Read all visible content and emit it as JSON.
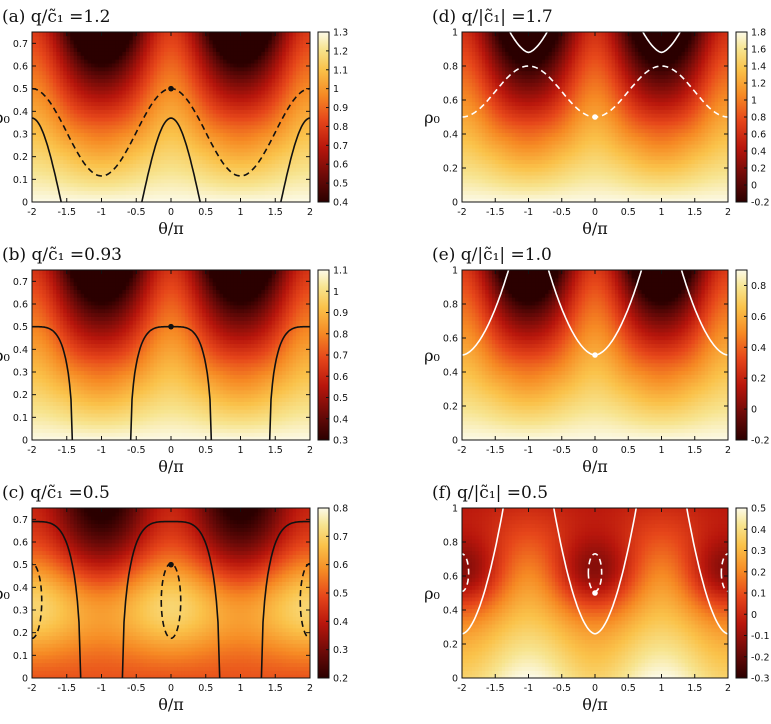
{
  "chart_data": [
    {
      "type": "heatmap",
      "id": "a",
      "title": "(a) q/c̃₁ =1.2",
      "xlabel": "θ/π",
      "ylabel": "ρ₀",
      "xlim": [
        -2,
        2
      ],
      "ylim": [
        0,
        0.75
      ],
      "xticks": [
        -2,
        -1.5,
        -1,
        -0.5,
        0,
        0.5,
        1,
        1.5,
        2
      ],
      "xtick_labels": [
        "-2",
        "-1.5",
        "-1",
        "-0.5",
        "0",
        "0.5",
        "1",
        "1.5",
        "2"
      ],
      "yticks": [
        0,
        0.1,
        0.2,
        0.3,
        0.4,
        0.5,
        0.6,
        0.7
      ],
      "ytick_labels": [
        "0",
        "0.1",
        "0.2",
        "0.3",
        "0.4",
        "0.5",
        "0.6",
        "0.7"
      ],
      "colorbar": {
        "min": 0.4,
        "max": 1.3,
        "ticks": [
          0.4,
          0.5,
          0.6,
          0.7,
          0.8,
          0.9,
          1,
          1.1,
          1.2,
          1.3
        ],
        "tick_labels": [
          "0.4",
          "0.5",
          "0.6",
          "0.7",
          "0.8",
          "0.9",
          "1",
          "1.1",
          "1.2",
          "1.3"
        ]
      },
      "field": {
        "profile": "sin",
        "gamma": 0.9
      },
      "contours": [
        {
          "color": "#111111",
          "dash": false,
          "kind": "cos",
          "base": 0.0,
          "amp": 0.37,
          "half_width": 0.42
        },
        {
          "color": "#111111",
          "dash": true,
          "kind": "cos",
          "base": 0.115,
          "amp": 0.385
        }
      ],
      "marker": {
        "x": 0,
        "y": 0.5,
        "color": "#111111"
      }
    },
    {
      "type": "heatmap",
      "id": "b",
      "title": "(b) q/c̃₁ =0.93",
      "xlabel": "θ/π",
      "ylabel": "ρ₀",
      "xlim": [
        -2,
        2
      ],
      "ylim": [
        0,
        0.75
      ],
      "xticks": [
        -2,
        -1.5,
        -1,
        -0.5,
        0,
        0.5,
        1,
        1.5,
        2
      ],
      "xtick_labels": [
        "-2",
        "-1.5",
        "-1",
        "-0.5",
        "0",
        "0.5",
        "1",
        "1.5",
        "2"
      ],
      "yticks": [
        0,
        0.1,
        0.2,
        0.3,
        0.4,
        0.5,
        0.6,
        0.7
      ],
      "ytick_labels": [
        "0",
        "0.1",
        "0.2",
        "0.3",
        "0.4",
        "0.5",
        "0.6",
        "0.7"
      ],
      "colorbar": {
        "min": 0.3,
        "max": 1.1,
        "ticks": [
          0.3,
          0.4,
          0.5,
          0.6,
          0.7,
          0.8,
          0.9,
          1,
          1.1
        ],
        "tick_labels": [
          "0.3",
          "0.4",
          "0.5",
          "0.6",
          "0.7",
          "0.8",
          "0.9",
          "1",
          "1.1"
        ]
      },
      "field": {
        "profile": "sin",
        "gamma": 0.95
      },
      "contours": [
        {
          "color": "#111111",
          "dash": false,
          "kind": "arch",
          "peak": 0.5,
          "half_width": 0.58
        }
      ],
      "marker": {
        "x": 0,
        "y": 0.5,
        "color": "#111111"
      }
    },
    {
      "type": "heatmap",
      "id": "c",
      "title": "(c) q/c̃₁ =0.5",
      "xlabel": "θ/π",
      "ylabel": "ρ₀",
      "xlim": [
        -2,
        2
      ],
      "ylim": [
        0,
        0.75
      ],
      "xticks": [
        -2,
        -1.5,
        -1,
        -0.5,
        0,
        0.5,
        1,
        1.5,
        2
      ],
      "xtick_labels": [
        "-2",
        "-1.5",
        "-1",
        "-0.5",
        "0",
        "0.5",
        "1",
        "1.5",
        "2"
      ],
      "yticks": [
        0,
        0.1,
        0.2,
        0.3,
        0.4,
        0.5,
        0.6,
        0.7
      ],
      "ytick_labels": [
        "0",
        "0.1",
        "0.2",
        "0.3",
        "0.4",
        "0.5",
        "0.6",
        "0.7"
      ],
      "colorbar": {
        "min": 0.2,
        "max": 0.8,
        "ticks": [
          0.2,
          0.3,
          0.4,
          0.5,
          0.6,
          0.7,
          0.8
        ],
        "tick_labels": [
          "0.2",
          "0.3",
          "0.4",
          "0.5",
          "0.6",
          "0.7",
          "0.8"
        ]
      },
      "field": {
        "profile": "bump",
        "gamma": 1.0
      },
      "contours": [
        {
          "color": "#111111",
          "dash": false,
          "kind": "arch",
          "peak": 0.69,
          "half_width": 0.7
        },
        {
          "color": "#111111",
          "dash": true,
          "kind": "ellipse",
          "cx": 0,
          "cy": 0.34,
          "rx": 0.14,
          "ry": 0.165
        },
        {
          "color": "#111111",
          "dash": true,
          "kind": "ellipse",
          "cx": 2,
          "cy": 0.34,
          "rx": 0.14,
          "ry": 0.165
        },
        {
          "color": "#111111",
          "dash": true,
          "kind": "ellipse",
          "cx": -2,
          "cy": 0.34,
          "rx": 0.14,
          "ry": 0.165
        }
      ],
      "marker": {
        "x": 0,
        "y": 0.5,
        "color": "#111111"
      }
    },
    {
      "type": "heatmap",
      "id": "d",
      "title": "(d) q/|c̃₁| =1.7",
      "xlabel": "θ/π",
      "ylabel": "ρ₀",
      "xlim": [
        -2,
        2
      ],
      "ylim": [
        0,
        1
      ],
      "xticks": [
        -2,
        -1.5,
        -1,
        -0.5,
        0,
        0.5,
        1,
        1.5,
        2
      ],
      "xtick_labels": [
        "-2",
        "-1.5",
        "-1",
        "-0.5",
        "0",
        "0.5",
        "1",
        "1.5",
        "2"
      ],
      "yticks": [
        0,
        0.2,
        0.4,
        0.6,
        0.8,
        1
      ],
      "ytick_labels": [
        "0",
        "0.2",
        "0.4",
        "0.6",
        "0.8",
        "1"
      ],
      "colorbar": {
        "min": -0.2,
        "max": 1.8,
        "ticks": [
          -0.2,
          0,
          0.2,
          0.4,
          0.6,
          0.8,
          1,
          1.2,
          1.4,
          1.6,
          1.8
        ],
        "tick_labels": [
          "-0.2",
          "0",
          "0.2",
          "0.4",
          "0.6",
          "0.8",
          "1",
          "1.2",
          "1.4",
          "1.6",
          "1.8"
        ]
      },
      "field": {
        "profile": "sin",
        "gamma": 1.0
      },
      "contours": [
        {
          "color": "#ffffff",
          "dash": true,
          "kind": "cos",
          "base": 0.5,
          "amp": 0.3,
          "invert": true
        },
        {
          "color": "#ffffff",
          "dash": false,
          "kind": "corner",
          "ymin": 0.88,
          "half_width": 0.28
        }
      ],
      "marker": {
        "x": 0,
        "y": 0.5,
        "color": "#ffffff"
      }
    },
    {
      "type": "heatmap",
      "id": "e",
      "title": "(e) q/|c̃₁| =1.0",
      "xlabel": "θ/π",
      "ylabel": "ρ₀",
      "xlim": [
        -2,
        2
      ],
      "ylim": [
        0,
        1
      ],
      "xticks": [
        -2,
        -1.5,
        -1,
        -0.5,
        0,
        0.5,
        1,
        1.5,
        2
      ],
      "xtick_labels": [
        "-2",
        "-1.5",
        "-1",
        "-0.5",
        "0",
        "0.5",
        "1",
        "1.5",
        "2"
      ],
      "yticks": [
        0,
        0.2,
        0.4,
        0.6,
        0.8,
        1
      ],
      "ytick_labels": [
        "0",
        "0.2",
        "0.4",
        "0.6",
        "0.8",
        "1"
      ],
      "colorbar": {
        "min": -0.2,
        "max": 0.9,
        "ticks": [
          -0.2,
          0,
          0.2,
          0.4,
          0.6,
          0.8
        ],
        "tick_labels": [
          "-0.2",
          "0",
          "0.2",
          "0.4",
          "0.6",
          "0.8"
        ]
      },
      "field": {
        "profile": "sin",
        "gamma": 0.9
      },
      "contours": [
        {
          "color": "#ffffff",
          "dash": false,
          "kind": "valley",
          "bottom": 0.5,
          "half_width": 0.7
        }
      ],
      "marker": {
        "x": 0,
        "y": 0.5,
        "color": "#ffffff"
      }
    },
    {
      "type": "heatmap",
      "id": "f",
      "title": "(f) q/|c̃₁| =0.5",
      "xlabel": "θ/π",
      "ylabel": "ρ₀",
      "xlim": [
        -2,
        2
      ],
      "ylim": [
        0,
        1
      ],
      "xticks": [
        -2,
        -1.5,
        -1,
        -0.5,
        0,
        0.5,
        1,
        1.5,
        2
      ],
      "xtick_labels": [
        "-2",
        "-1.5",
        "-1",
        "-0.5",
        "0",
        "0.5",
        "1",
        "1.5",
        "2"
      ],
      "yticks": [
        0,
        0.2,
        0.4,
        0.6,
        0.8,
        1
      ],
      "ytick_labels": [
        "0",
        "0.2",
        "0.4",
        "0.6",
        "0.8",
        "1"
      ],
      "colorbar": {
        "min": -0.3,
        "max": 0.5,
        "ticks": [
          -0.3,
          -0.2,
          -0.1,
          0,
          0.1,
          0.2,
          0.3,
          0.4,
          0.5
        ],
        "tick_labels": [
          "-0.3",
          "-0.2",
          "-0.1",
          "0",
          "0.1",
          "0.2",
          "0.3",
          "0.4",
          "0.5"
        ]
      },
      "field": {
        "profile": "well",
        "gamma": 1.0
      },
      "contours": [
        {
          "color": "#ffffff",
          "dash": false,
          "kind": "valley",
          "bottom": 0.26,
          "half_width": 0.62
        },
        {
          "color": "#ffffff",
          "dash": true,
          "kind": "ellipse",
          "cx": 0,
          "cy": 0.62,
          "rx": 0.1,
          "ry": 0.11
        },
        {
          "color": "#ffffff",
          "dash": true,
          "kind": "ellipse",
          "cx": 2,
          "cy": 0.62,
          "rx": 0.1,
          "ry": 0.11
        },
        {
          "color": "#ffffff",
          "dash": true,
          "kind": "ellipse",
          "cx": -2,
          "cy": 0.62,
          "rx": 0.1,
          "ry": 0.11
        }
      ],
      "marker": {
        "x": 0,
        "y": 0.5,
        "color": "#ffffff"
      }
    }
  ]
}
